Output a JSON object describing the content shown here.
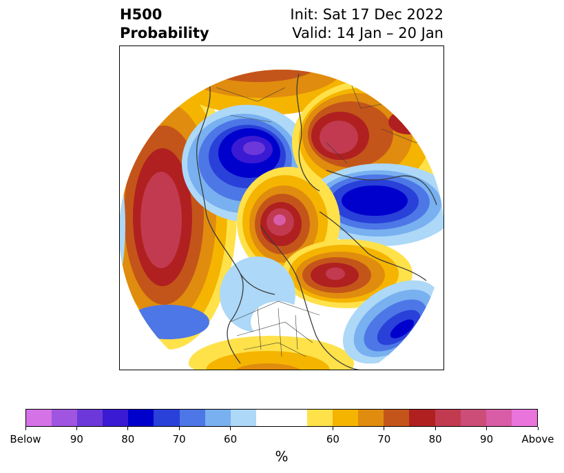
{
  "title": {
    "left_line1": "H500",
    "left_line2": "Probability",
    "right_line1": "Init: Sat 17 Dec 2022",
    "right_line2": "Valid: 14 Jan – 20 Jan"
  },
  "map": {
    "projection": "polar-stereographic-north",
    "variable": "500 hPa height anomaly probability"
  },
  "colorbar": {
    "unit": "%",
    "below_colors": [
      "#d572e6",
      "#9f55e0",
      "#6c38d9",
      "#3a1ad3",
      "#0000cc",
      "#2940d9",
      "#4d76e6",
      "#78b0f0",
      "#add8f7"
    ],
    "neutral_color": "#ffffff",
    "above_colors": [
      "#ffe14a",
      "#f5b400",
      "#e08c0e",
      "#c4551a",
      "#b02020",
      "#c13a50",
      "#cb4d78",
      "#d85ca6",
      "#e874dc"
    ],
    "tick_labels": [
      "Below",
      "90",
      "80",
      "70",
      "60",
      "60",
      "70",
      "80",
      "90",
      "Above"
    ]
  }
}
